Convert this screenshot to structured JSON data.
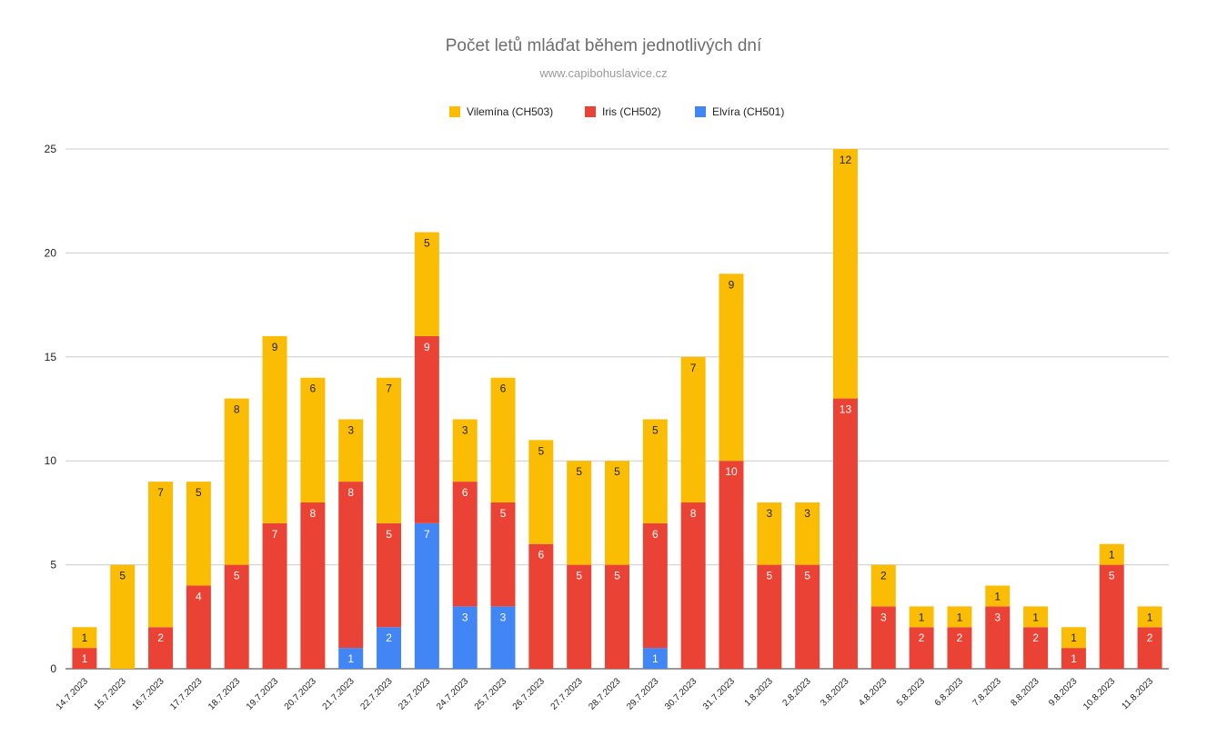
{
  "chart_data": {
    "type": "bar",
    "stacked": true,
    "title": "Počet letů mláďat během jednotlivých dní",
    "subtitle": "www.capibohuslavice.cz",
    "legend_position": "top",
    "ylim": [
      0,
      25
    ],
    "yticks": [
      0,
      5,
      10,
      15,
      20,
      25
    ],
    "grid": true,
    "categories": [
      "14.7.2023",
      "15.7.2023",
      "16.7.2023",
      "17.7.2023",
      "18.7.2023",
      "19.7.2023",
      "20.7.2023",
      "21.7.2023",
      "22.7.2023",
      "23.7.2023",
      "24.7.2023",
      "25.7.2023",
      "26.7.2023",
      "27.7.2023",
      "28.7.2023",
      "29.7.2023",
      "30.7.2023",
      "31.7.2023",
      "1.8.2023",
      "2.8.2023",
      "3.8.2023",
      "4.8.2023",
      "5.8.2023",
      "6.8.2023",
      "7.8.2023",
      "8.8.2023",
      "9.8.2023",
      "10.8.2023",
      "11.8.2023"
    ],
    "series": [
      {
        "name": "Elvíra (CH501)",
        "color": "#4285f4",
        "values": [
          0,
          0,
          0,
          0,
          0,
          0,
          0,
          1,
          2,
          7,
          3,
          3,
          0,
          0,
          0,
          1,
          0,
          0,
          0,
          0,
          0,
          0,
          0,
          0,
          0,
          0,
          0,
          0,
          0
        ]
      },
      {
        "name": "Iris (CH502)",
        "color": "#ea4335",
        "values": [
          1,
          0,
          2,
          4,
          5,
          7,
          8,
          8,
          5,
          9,
          6,
          5,
          6,
          5,
          5,
          6,
          8,
          10,
          5,
          5,
          13,
          3,
          2,
          2,
          3,
          2,
          1,
          5,
          2
        ]
      },
      {
        "name": "Vilemína (CH503)",
        "color": "#fbbc04",
        "values": [
          1,
          5,
          7,
          5,
          8,
          9,
          6,
          3,
          7,
          5,
          3,
          6,
          5,
          5,
          5,
          5,
          7,
          9,
          3,
          3,
          12,
          2,
          1,
          1,
          1,
          1,
          1,
          1,
          1
        ]
      }
    ],
    "legend_order": [
      "Vilemína (CH503)",
      "Iris (CH502)",
      "Elvíra (CH501)"
    ]
  }
}
